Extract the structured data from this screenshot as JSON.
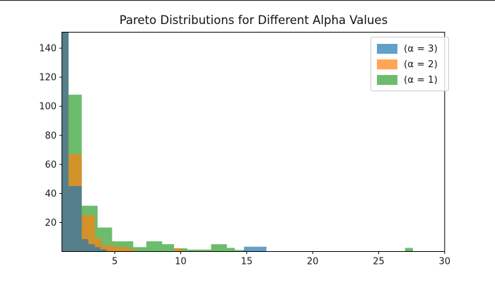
{
  "figure": {
    "title": "Pareto Distributions for Different Alpha Values",
    "background_color": "#ffffff",
    "spine_color": "#000000",
    "tick_label_color": "#1a1a1a"
  },
  "chart_data": {
    "type": "bar",
    "subtype": "overlapping-histograms",
    "title": "Pareto Distributions for Different Alpha Values",
    "xlabel": "",
    "ylabel": "",
    "xlim": [
      1,
      30
    ],
    "ylim": [
      0,
      151
    ],
    "xticks": [
      5,
      10,
      15,
      20,
      25,
      30
    ],
    "yticks": [
      20,
      40,
      60,
      80,
      100,
      120,
      140
    ],
    "grid": false,
    "legend_position": "upper right",
    "bar_opacity": 0.7,
    "series": [
      {
        "name": "(α = 3)",
        "color": "#1f77b4",
        "draw_order": 3,
        "bars": [
          [
            1.0,
            1.5,
            151
          ],
          [
            1.5,
            2.5,
            45
          ],
          [
            2.5,
            3.0,
            8.5
          ],
          [
            3.0,
            3.5,
            5
          ],
          [
            3.5,
            3.9,
            3
          ],
          [
            3.9,
            4.4,
            1.5
          ],
          [
            14.8,
            16.5,
            3.3
          ]
        ]
      },
      {
        "name": "(α = 2)",
        "color": "#ff7f0e",
        "draw_order": 2,
        "bars": [
          [
            1.0,
            1.5,
            151
          ],
          [
            1.5,
            2.5,
            67
          ],
          [
            2.5,
            3.5,
            25
          ],
          [
            3.5,
            4.0,
            9
          ],
          [
            4.0,
            5.0,
            4.5
          ],
          [
            5.0,
            6.0,
            3
          ],
          [
            6.0,
            6.5,
            2
          ],
          [
            9.5,
            10.1,
            2.3
          ]
        ]
      },
      {
        "name": "(α = 1)",
        "color": "#2ca02c",
        "draw_order": 1,
        "bars": [
          [
            1.0,
            1.5,
            151
          ],
          [
            1.5,
            2.5,
            108
          ],
          [
            2.5,
            3.7,
            31.5
          ],
          [
            3.7,
            4.8,
            16.5
          ],
          [
            4.8,
            6.4,
            7
          ],
          [
            6.4,
            7.4,
            3
          ],
          [
            7.4,
            8.6,
            7
          ],
          [
            8.6,
            9.5,
            5
          ],
          [
            9.5,
            10.5,
            2.2
          ],
          [
            10.5,
            12.3,
            1.3
          ],
          [
            12.3,
            13.5,
            5
          ],
          [
            13.5,
            14.1,
            2.5
          ],
          [
            14.1,
            14.9,
            1
          ],
          [
            27.0,
            27.6,
            2.5
          ]
        ]
      }
    ]
  },
  "legend": {
    "items": [
      {
        "label": "(α = 3)",
        "color": "#1f77b4"
      },
      {
        "label": "(α = 2)",
        "color": "#ff7f0e"
      },
      {
        "label": "(α = 1)",
        "color": "#2ca02c"
      }
    ]
  }
}
